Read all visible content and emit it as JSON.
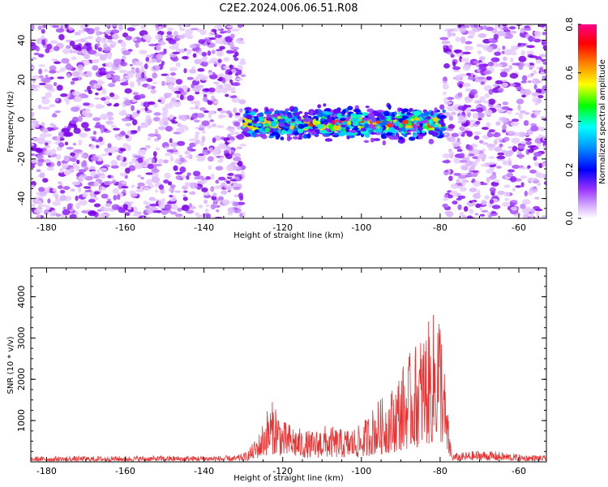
{
  "title": "C2E2.2024.006.06.51.R08",
  "chart_data": [
    {
      "type": "heatmap",
      "xlabel": "Height of straight line (km)",
      "ylabel": "Frequency (Hz)",
      "xlim": [
        -184,
        -53
      ],
      "ylim": [
        -50,
        48
      ],
      "xticks": [
        -180,
        -160,
        -140,
        -120,
        -100,
        -80,
        -60
      ],
      "yticks": [
        -40,
        -20,
        0,
        20,
        40
      ],
      "colorbar": {
        "label": "Normalized spectral amplitude",
        "range": [
          0,
          0.8
        ],
        "ticks": [
          0.0,
          0.2,
          0.4,
          0.6,
          0.8
        ],
        "colors": [
          "#ffffff",
          "#c080ff",
          "#8000ff",
          "#0000ff",
          "#00ffff",
          "#00ff00",
          "#ffff00",
          "#ff8000",
          "#ff0000",
          "#ff0080"
        ]
      },
      "echo_band": {
        "x_range": [
          -130,
          -79
        ],
        "center_hz": -2,
        "halfwidth_hz": 7,
        "peak_amplitude": 0.8
      },
      "noise_regions": [
        [
          -184,
          -130
        ],
        [
          -79,
          -53
        ]
      ]
    },
    {
      "type": "line",
      "xlabel": "Height of straight line (km)",
      "ylabel": "SNR (10 * v/v)",
      "xlim": [
        -184,
        -53
      ],
      "ylim": [
        0,
        4700
      ],
      "xticks": [
        -180,
        -160,
        -140,
        -120,
        -100,
        -80,
        -60
      ],
      "yticks": [
        1000,
        2000,
        3000,
        4000
      ],
      "color": "#ee3030",
      "envelope": {
        "x": [
          -184,
          -132,
          -129,
          -126,
          -124,
          -122,
          -120,
          -117,
          -115,
          -112,
          -110,
          -107,
          -105,
          -102,
          -100,
          -98,
          -96,
          -94,
          -92,
          -90,
          -88,
          -86,
          -84,
          -82,
          -80.5,
          -79.5,
          -78.5,
          -77,
          -74,
          -70,
          -65,
          -60,
          -53
        ],
        "y": [
          130,
          150,
          250,
          700,
          1300,
          1550,
          1000,
          900,
          780,
          750,
          900,
          850,
          800,
          850,
          900,
          1200,
          1500,
          1600,
          1850,
          2300,
          2600,
          2900,
          3300,
          3500,
          4200,
          3300,
          1600,
          200,
          230,
          280,
          250,
          180,
          150
        ]
      }
    }
  ]
}
